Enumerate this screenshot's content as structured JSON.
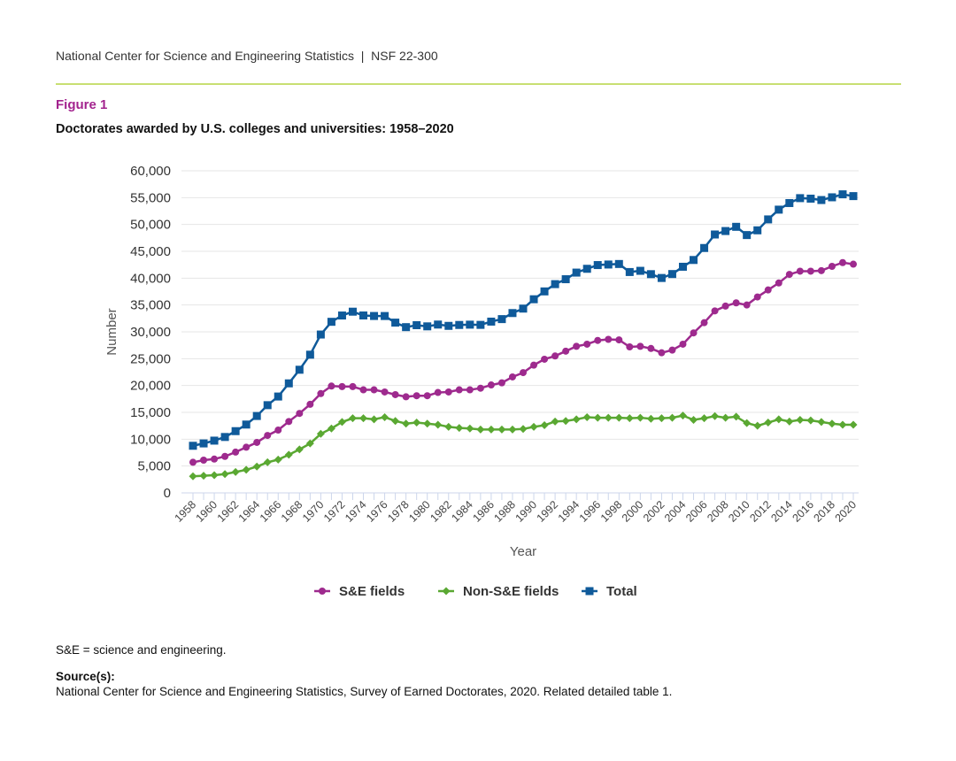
{
  "header": {
    "text": "National Center for Science and Engineering Statistics  |  NSF 22-300"
  },
  "figure": {
    "label": "Figure 1",
    "title": "Doctorates awarded by U.S. colleges and universities: 1958–2020"
  },
  "footnote": "S&E = science and engineering.",
  "source": {
    "heading": "Source(s):",
    "text": "National Center for Science and Engineering Statistics, Survey of Earned Doctorates, 2020. Related detailed table 1."
  },
  "chart_data": {
    "type": "line",
    "title": "",
    "xlabel": "Year",
    "ylabel": "Number",
    "ylim": [
      0,
      60000
    ],
    "yticks": [
      "0",
      "5,000",
      "10,000",
      "15,000",
      "20,000",
      "25,000",
      "30,000",
      "35,000",
      "40,000",
      "45,000",
      "50,000",
      "55,000",
      "60,000"
    ],
    "ytick_values": [
      0,
      5000,
      10000,
      15000,
      20000,
      25000,
      30000,
      35000,
      40000,
      45000,
      50000,
      55000,
      60000
    ],
    "xtick_labels": [
      "1958",
      "1960",
      "1962",
      "1964",
      "1966",
      "1968",
      "1970",
      "1972",
      "1974",
      "1976",
      "1978",
      "1980",
      "1982",
      "1984",
      "1986",
      "1988",
      "1990",
      "1992",
      "1994",
      "1996",
      "1998",
      "2000",
      "2002",
      "2004",
      "2006",
      "2008",
      "2010",
      "2012",
      "2014",
      "2016",
      "2018",
      "2020"
    ],
    "grid": "horizontal",
    "legend_position": "bottom",
    "x": [
      1958,
      1959,
      1960,
      1961,
      1962,
      1963,
      1964,
      1965,
      1966,
      1967,
      1968,
      1969,
      1970,
      1971,
      1972,
      1973,
      1974,
      1975,
      1976,
      1977,
      1978,
      1979,
      1980,
      1981,
      1982,
      1983,
      1984,
      1985,
      1986,
      1987,
      1988,
      1989,
      1990,
      1991,
      1992,
      1993,
      1994,
      1995,
      1996,
      1997,
      1998,
      1999,
      2000,
      2001,
      2002,
      2003,
      2004,
      2005,
      2006,
      2007,
      2008,
      2009,
      2010,
      2011,
      2012,
      2013,
      2014,
      2015,
      2016,
      2017,
      2018,
      2019,
      2020
    ],
    "series": [
      {
        "name": "S&E fields",
        "color": "#9e2a8e",
        "marker": "circle",
        "values": [
          5700,
          6100,
          6300,
          6800,
          7600,
          8500,
          9400,
          10700,
          11700,
          13300,
          14800,
          16500,
          18500,
          19900,
          19800,
          19800,
          19200,
          19200,
          18800,
          18300,
          17900,
          18100,
          18100,
          18700,
          18800,
          19200,
          19200,
          19500,
          20100,
          20500,
          21600,
          22400,
          23800,
          24900,
          25500,
          26400,
          27300,
          27700,
          28400,
          28600,
          28500,
          27200,
          27300,
          26900,
          26100,
          26600,
          27700,
          29800,
          31700,
          33900,
          34800,
          35400,
          35000,
          36500,
          37800,
          39100,
          40700,
          41300,
          41300,
          41400,
          42200,
          42900,
          42600
        ]
      },
      {
        "name": "Non-S&E fields",
        "color": "#5aa832",
        "marker": "diamond",
        "values": [
          3100,
          3200,
          3300,
          3500,
          3900,
          4300,
          4900,
          5700,
          6200,
          7100,
          8100,
          9200,
          11000,
          12000,
          13200,
          13900,
          13900,
          13700,
          14100,
          13400,
          12900,
          13100,
          12900,
          12700,
          12300,
          12100,
          12000,
          11800,
          11800,
          11800,
          11800,
          11900,
          12300,
          12600,
          13300,
          13400,
          13700,
          14100,
          14000,
          14000,
          14000,
          13900,
          14000,
          13800,
          13900,
          14000,
          14400,
          13600,
          13900,
          14300,
          14000,
          14200,
          13000,
          12500,
          13100,
          13700,
          13300,
          13600,
          13500,
          13200,
          12900,
          12700,
          12700
        ]
      },
      {
        "name": "Total",
        "color": "#0f5a9a",
        "marker": "square",
        "values": [
          8773,
          9213,
          9733,
          10413,
          11500,
          12728,
          14325,
          16340,
          17949,
          20403,
          22937,
          25743,
          29498,
          31867,
          33041,
          33755,
          33047,
          32952,
          32946,
          31716,
          30875,
          31239,
          31020,
          31356,
          31111,
          31281,
          31337,
          31297,
          31902,
          32370,
          33500,
          34327,
          36068,
          37530,
          38886,
          39800,
          41034,
          41743,
          42437,
          42539,
          42638,
          41140,
          41366,
          40744,
          40031,
          40766,
          42122,
          43385,
          45617,
          48133,
          48777,
          49562,
          48029,
          48909,
          50944,
          52760,
          53989,
          54904,
          54809,
          54552,
          55062,
          55614,
          55283
        ]
      }
    ]
  }
}
